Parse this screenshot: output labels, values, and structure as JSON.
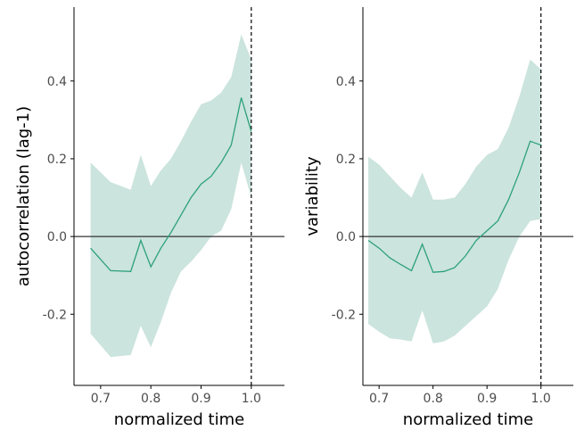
{
  "colors": {
    "line": "#2ca07a",
    "band": "#cbe4dd",
    "axis": "#000000",
    "zero_line": "#333333",
    "tick_text": "#4d4d4d"
  },
  "chart_data": [
    {
      "type": "line",
      "title": "",
      "xlabel": "normalized time",
      "ylabel": "autocorrelation (lag-1)",
      "xlim": [
        0.647,
        1.066
      ],
      "ylim": [
        -0.383,
        0.59
      ],
      "xticks": [
        "0.7",
        "0.8",
        "0.9",
        "1.0"
      ],
      "xtick_values": [
        0.7,
        0.8,
        0.9,
        1.0
      ],
      "yticks": [
        "-0.2",
        "0.0",
        "0.2",
        "0.4"
      ],
      "ytick_values": [
        -0.2,
        0.0,
        0.2,
        0.4
      ],
      "hline": 0.0,
      "vline": 1.0,
      "grid": false,
      "series": [
        {
          "x": [
            0.68,
            0.72,
            0.76,
            0.78,
            0.8,
            0.82,
            0.84,
            0.86,
            0.88,
            0.9,
            0.92,
            0.94,
            0.96,
            0.98,
            1.0
          ],
          "values": [
            -0.03,
            -0.088,
            -0.09,
            -0.01,
            -0.078,
            -0.03,
            0.01,
            0.055,
            0.1,
            0.135,
            0.155,
            0.19,
            0.235,
            0.357,
            0.27
          ],
          "lower": [
            -0.25,
            -0.31,
            -0.305,
            -0.23,
            -0.285,
            -0.22,
            -0.145,
            -0.09,
            -0.065,
            -0.035,
            0.0,
            0.015,
            0.07,
            0.19,
            0.1
          ],
          "upper": [
            0.19,
            0.14,
            0.12,
            0.21,
            0.13,
            0.17,
            0.2,
            0.245,
            0.295,
            0.34,
            0.35,
            0.37,
            0.41,
            0.52,
            0.455
          ]
        }
      ]
    },
    {
      "type": "line",
      "title": "",
      "xlabel": "normalized time",
      "ylabel": "variability",
      "xlim": [
        0.67,
        1.06
      ],
      "ylim": [
        -0.383,
        0.59
      ],
      "xticks": [
        "0.7",
        "0.8",
        "0.9",
        "1.0"
      ],
      "xtick_values": [
        0.7,
        0.8,
        0.9,
        1.0
      ],
      "yticks": [
        "-0.2",
        "0.0",
        "0.2",
        "0.4"
      ],
      "ytick_values": [
        -0.2,
        0.0,
        0.2,
        0.4
      ],
      "hline": 0.0,
      "vline": 1.0,
      "grid": false,
      "series": [
        {
          "x": [
            0.68,
            0.7,
            0.72,
            0.74,
            0.76,
            0.78,
            0.8,
            0.82,
            0.84,
            0.86,
            0.88,
            0.9,
            0.92,
            0.94,
            0.96,
            0.98,
            1.0
          ],
          "values": [
            -0.01,
            -0.03,
            -0.055,
            -0.072,
            -0.088,
            -0.02,
            -0.092,
            -0.09,
            -0.08,
            -0.05,
            -0.01,
            0.015,
            0.04,
            0.095,
            0.165,
            0.245,
            0.235
          ],
          "lower": [
            -0.225,
            -0.245,
            -0.262,
            -0.265,
            -0.27,
            -0.19,
            -0.275,
            -0.27,
            -0.255,
            -0.23,
            -0.205,
            -0.18,
            -0.135,
            -0.06,
            0.0,
            0.04,
            0.045
          ],
          "upper": [
            0.205,
            0.185,
            0.155,
            0.125,
            0.1,
            0.165,
            0.095,
            0.095,
            0.1,
            0.135,
            0.18,
            0.21,
            0.225,
            0.28,
            0.36,
            0.455,
            0.43
          ]
        }
      ]
    }
  ]
}
